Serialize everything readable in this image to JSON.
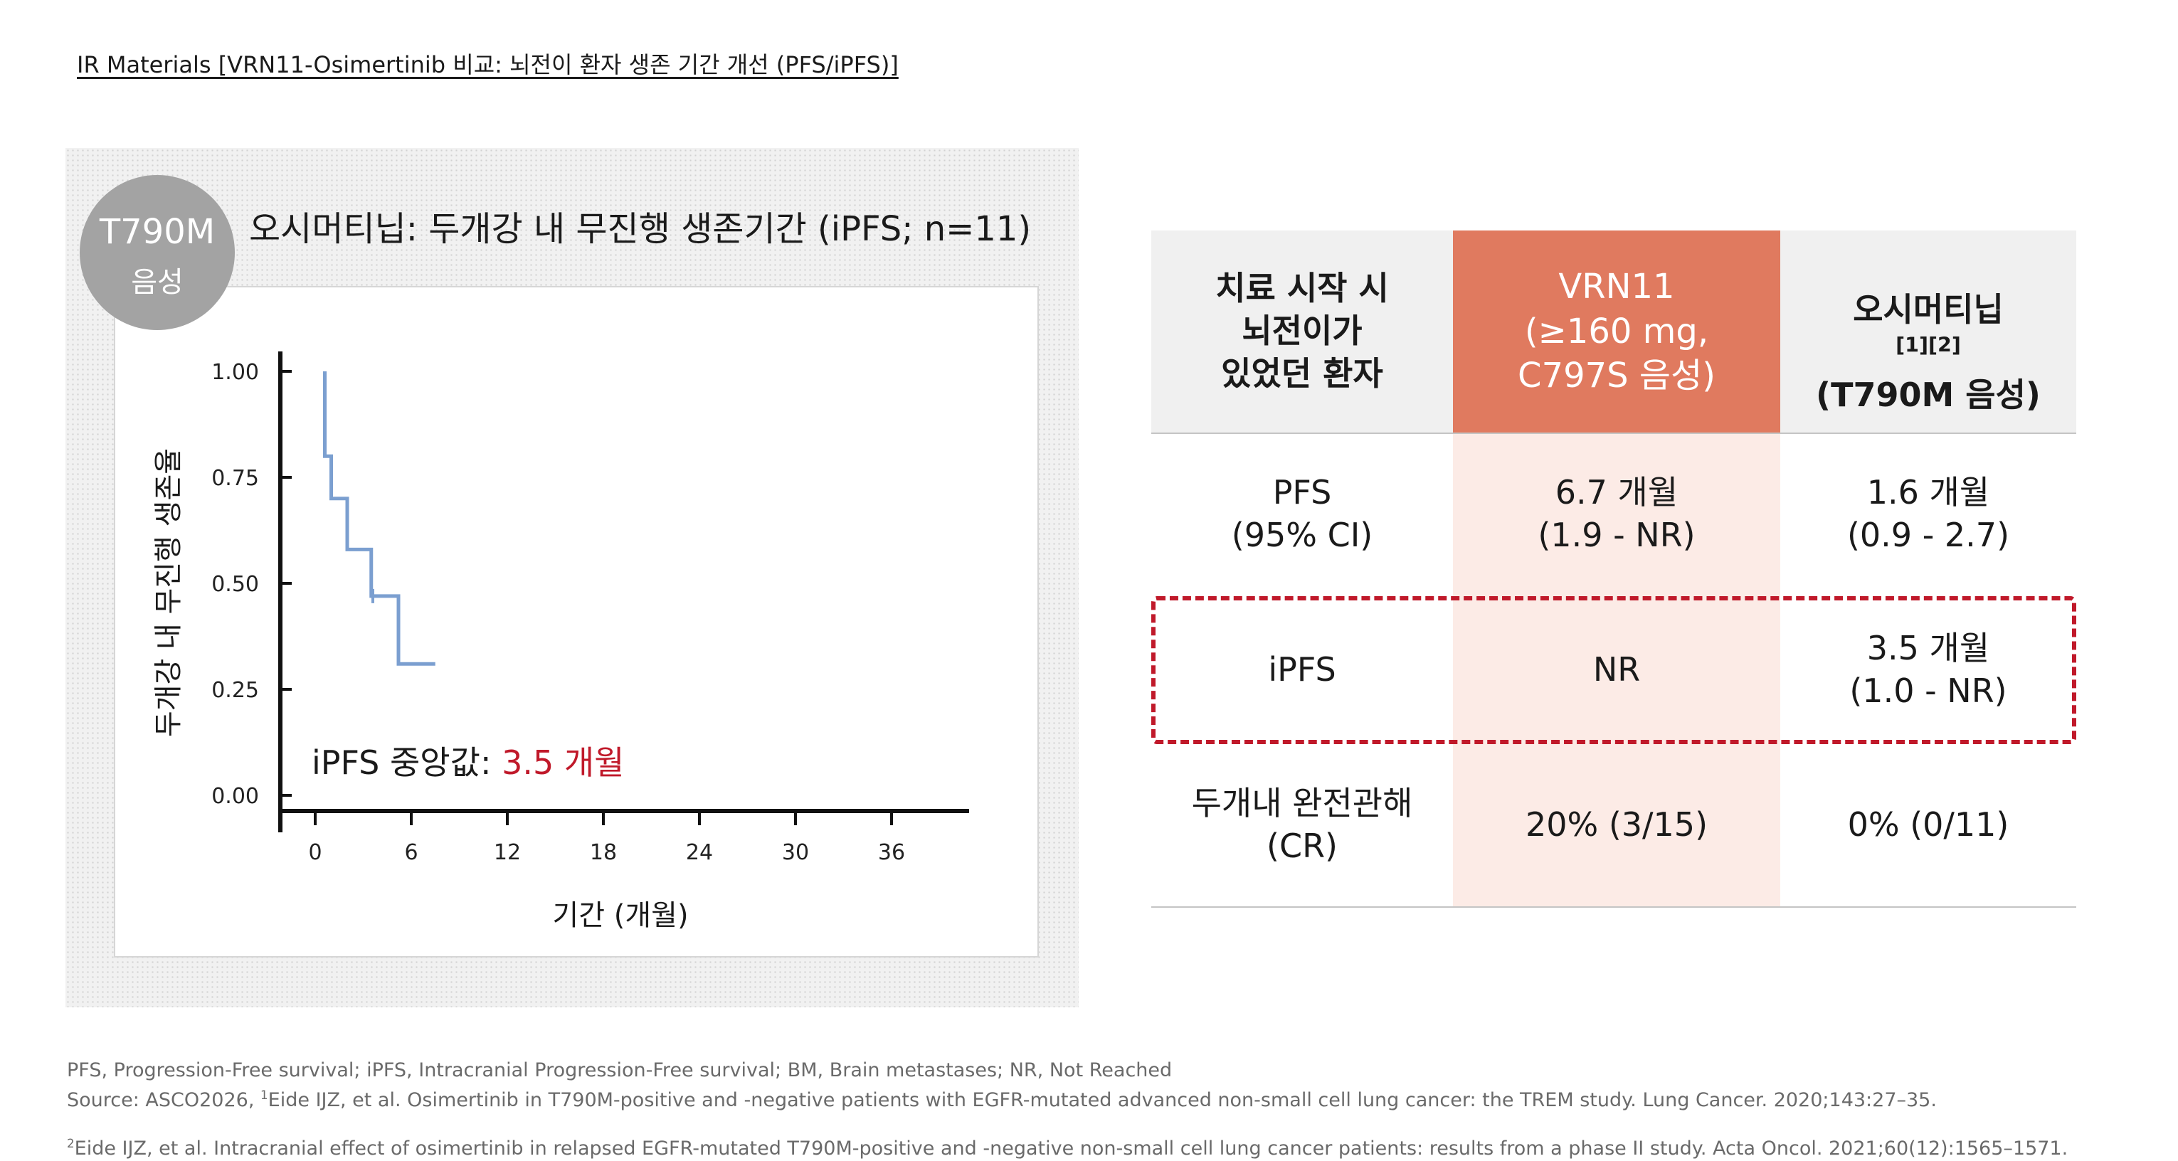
{
  "header": {
    "title": "IR Materials [VRN11-Osimertinib 비교: 뇌전이 환자 생존 기간 개선 (PFS/iPFS)]"
  },
  "badge": {
    "line1": "T790M",
    "line2": "음성"
  },
  "chart_data": {
    "type": "line",
    "title": "오시머티닙: 두개강 내 무진행 생존기간 (iPFS; n=11)",
    "xlabel": "기간 (개월)",
    "ylabel": "두개강 내 무진행 생존율",
    "xticks": [
      "0",
      "6",
      "12",
      "18",
      "24",
      "30",
      "36"
    ],
    "yticks": [
      "1.00",
      "0.75",
      "0.50",
      "0.25",
      "0.00"
    ],
    "xlim": [
      0,
      36
    ],
    "ylim": [
      0,
      1
    ],
    "grid": false,
    "series": [
      {
        "color": "#7b9fd0",
        "step": true,
        "x": [
          0.6,
          0.6,
          1.0,
          1.0,
          2.0,
          2.0,
          3.5,
          3.5,
          5.2,
          5.2,
          7.5
        ],
        "y": [
          1.0,
          0.8,
          0.8,
          0.7,
          0.7,
          0.58,
          0.58,
          0.47,
          0.47,
          0.31,
          0.31
        ]
      }
    ],
    "censor_marks": [
      {
        "x": 3.6,
        "y": 0.47
      }
    ],
    "annotation": {
      "label": "iPFS 중앙값: ",
      "value": "3.5 개월",
      "value_color": "#c0192a"
    }
  },
  "table": {
    "header_bg": "#f0f0f0",
    "vrn_header_bg": "#e07a5f",
    "vrn_col_bg": "#fcebe6",
    "highlight_color": "#c0192a",
    "headers": {
      "label": "치료 시작 시\n뇌전이가\n있었던 환자",
      "vrn11": "VRN11\n(≥160 mg,\nC797S 음성)",
      "osimertinib": "오시머티닙",
      "osimertinib_refs": "[1][2]",
      "osimertinib_sub": "(T790M 음성)"
    },
    "rows": [
      {
        "label": "PFS\n(95% CI)",
        "vrn11": "6.7 개월\n(1.9 - NR)",
        "osimertinib": "1.6 개월\n(0.9 - 2.7)"
      },
      {
        "label": "iPFS",
        "vrn11": "NR",
        "osimertinib": "3.5 개월\n(1.0 - NR)"
      },
      {
        "label": "두개내 완전관해\n(CR)",
        "vrn11": "20% (3/15)",
        "osimertinib": "0% (0/11)"
      }
    ]
  },
  "footnotes": {
    "line1": "PFS, Progression-Free survival; iPFS, Intracranial Progression-Free survival; BM, Brain metastases; NR, Not Reached",
    "line2_prefix": "Source: ASCO2026, ",
    "line2_sup": "1",
    "line2_text": "Eide IJZ, et al. Osimertinib in T790M-positive and -negative patients with EGFR-mutated advanced non-small cell lung cancer: the TREM study. Lung Cancer. 2020;143:27–35.",
    "line3_sup": "2",
    "line3_text": "Eide IJZ, et al. Intracranial effect of osimertinib in relapsed EGFR-mutated T790M-positive and -negative non-small cell lung cancer patients: results from a phase II study. Acta Oncol. 2021;60(12):1565–1571."
  }
}
